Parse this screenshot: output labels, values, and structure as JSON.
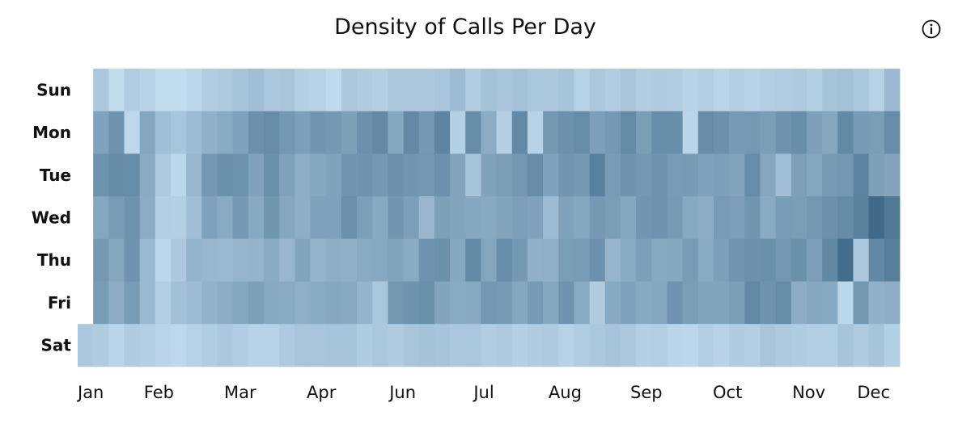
{
  "header": {
    "title": "Density of Calls Per Day",
    "info_icon": "info-circle-icon"
  },
  "chart_data": {
    "type": "heatmap",
    "title": "Density of Calls Per Day",
    "xlabel": "",
    "ylabel": "",
    "rows": [
      "Sun",
      "Mon",
      "Tue",
      "Wed",
      "Thu",
      "Fri",
      "Sat"
    ],
    "month_labels": [
      "Jan",
      "Feb",
      "Mar",
      "Apr",
      "Jun",
      "Jul",
      "Aug",
      "Sep",
      "Oct",
      "Nov",
      "Dec"
    ],
    "week_columns": 53,
    "value_scale": [
      0,
      100
    ],
    "color_scale": [
      "#cfe8fb",
      "#1c4a6b"
    ],
    "values": [
      [
        null,
        20,
        8,
        17,
        13,
        8,
        8,
        11,
        17,
        19,
        23,
        26,
        20,
        22,
        15,
        13,
        9,
        20,
        18,
        15,
        20,
        20,
        20,
        22,
        28,
        17,
        24,
        22,
        24,
        21,
        20,
        23,
        14,
        20,
        17,
        22,
        17,
        18,
        17,
        13,
        15,
        12,
        16,
        13,
        16,
        17,
        19,
        15,
        23,
        24,
        21,
        14,
        29
      ],
      [
        null,
        44,
        53,
        10,
        42,
        26,
        22,
        28,
        35,
        39,
        44,
        55,
        58,
        51,
        46,
        52,
        50,
        45,
        55,
        60,
        41,
        60,
        50,
        63,
        15,
        58,
        38,
        15,
        60,
        14,
        50,
        55,
        58,
        46,
        50,
        59,
        47,
        57,
        57,
        12,
        58,
        55,
        49,
        50,
        47,
        53,
        57,
        46,
        41,
        60,
        49,
        47,
        58
      ],
      [
        null,
        54,
        59,
        58,
        39,
        19,
        11,
        31,
        51,
        56,
        54,
        44,
        56,
        44,
        37,
        41,
        44,
        52,
        53,
        50,
        55,
        52,
        51,
        55,
        43,
        23,
        44,
        47,
        51,
        58,
        44,
        52,
        50,
        66,
        48,
        53,
        50,
        53,
        48,
        49,
        44,
        46,
        43,
        58,
        42,
        26,
        46,
        41,
        49,
        51,
        64,
        45,
        43
      ],
      [
        null,
        42,
        48,
        54,
        38,
        16,
        15,
        26,
        44,
        39,
        50,
        40,
        52,
        42,
        37,
        44,
        44,
        55,
        46,
        40,
        52,
        46,
        31,
        45,
        43,
        41,
        40,
        43,
        46,
        44,
        28,
        44,
        41,
        50,
        47,
        42,
        52,
        53,
        49,
        40,
        38,
        48,
        46,
        52,
        39,
        48,
        47,
        51,
        55,
        59,
        65,
        80,
        70
      ],
      [
        null,
        50,
        42,
        53,
        30,
        11,
        20,
        33,
        31,
        30,
        32,
        33,
        39,
        31,
        43,
        33,
        37,
        36,
        39,
        40,
        43,
        39,
        53,
        56,
        41,
        60,
        42,
        57,
        50,
        35,
        36,
        47,
        48,
        55,
        32,
        39,
        46,
        40,
        41,
        48,
        39,
        46,
        52,
        55,
        56,
        51,
        56,
        46,
        61,
        78,
        20,
        61,
        67
      ],
      [
        null,
        48,
        38,
        48,
        30,
        16,
        25,
        28,
        34,
        38,
        42,
        45,
        40,
        39,
        36,
        39,
        41,
        40,
        33,
        21,
        51,
        53,
        56,
        43,
        39,
        40,
        51,
        49,
        41,
        49,
        41,
        53,
        39,
        18,
        40,
        44,
        40,
        41,
        53,
        47,
        43,
        43,
        47,
        60,
        53,
        58,
        38,
        41,
        40,
        11,
        51,
        35,
        37
      ],
      [
        20,
        18,
        12,
        18,
        15,
        12,
        10,
        14,
        17,
        20,
        17,
        14,
        14,
        19,
        22,
        22,
        23,
        23,
        18,
        21,
        18,
        22,
        24,
        23,
        20,
        21,
        17,
        19,
        15,
        18,
        19,
        14,
        17,
        20,
        23,
        20,
        15,
        16,
        12,
        11,
        16,
        13,
        18,
        16,
        22,
        19,
        18,
        16,
        16,
        23,
        18,
        23,
        15
      ]
    ]
  }
}
